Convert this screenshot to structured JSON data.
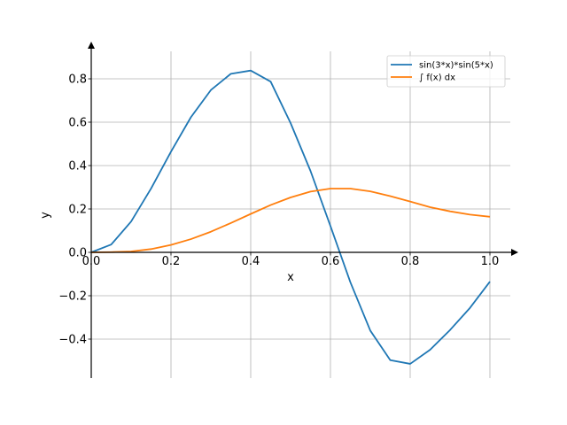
{
  "chart_data": {
    "type": "line",
    "xlabel": "x",
    "ylabel": "y",
    "xlim": [
      0.0,
      1.0
    ],
    "ylim": [
      -0.58,
      0.93
    ],
    "grid": true,
    "legend_position": "top-right",
    "x_ticks": [
      {
        "value": 0.0,
        "label": "0.0"
      },
      {
        "value": 0.2,
        "label": "0.2"
      },
      {
        "value": 0.4,
        "label": "0.4"
      },
      {
        "value": 0.6,
        "label": "0.6"
      },
      {
        "value": 0.8,
        "label": "0.8"
      },
      {
        "value": 1.0,
        "label": "1.0"
      }
    ],
    "y_ticks": [
      {
        "value": -0.4,
        "label": "−0.4"
      },
      {
        "value": -0.2,
        "label": "−0.2"
      },
      {
        "value": 0.0,
        "label": "0.0"
      },
      {
        "value": 0.2,
        "label": "0.2"
      },
      {
        "value": 0.4,
        "label": "0.4"
      },
      {
        "value": 0.6,
        "label": "0.6"
      },
      {
        "value": 0.8,
        "label": "0.8"
      }
    ],
    "x": [
      0.0,
      0.05,
      0.1,
      0.15,
      0.2,
      0.25,
      0.3,
      0.35,
      0.4,
      0.45,
      0.5,
      0.55,
      0.6,
      0.65,
      0.7,
      0.75,
      0.8,
      0.85,
      0.9,
      0.95,
      1.0
    ],
    "series": [
      {
        "name": "sin(3*x)*sin(5*x)",
        "color": "#1f77b4",
        "values": [
          0.0,
          0.036,
          0.142,
          0.294,
          0.464,
          0.623,
          0.748,
          0.823,
          0.838,
          0.787,
          0.596,
          0.375,
          0.121,
          -0.138,
          -0.361,
          -0.497,
          -0.514,
          -0.449,
          -0.358,
          -0.256,
          -0.135
        ]
      },
      {
        "name": "∫ f(x) dx",
        "color": "#ff7f0e",
        "values": [
          0.0,
          0.001,
          0.004,
          0.015,
          0.034,
          0.061,
          0.095,
          0.135,
          0.177,
          0.218,
          0.253,
          0.28,
          0.294,
          0.294,
          0.281,
          0.259,
          0.234,
          0.208,
          0.189,
          0.174,
          0.164
        ]
      }
    ]
  }
}
